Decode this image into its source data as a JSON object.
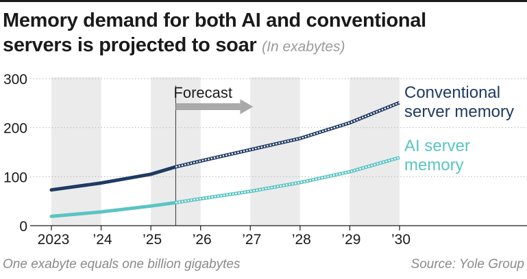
{
  "header": {
    "title_line1": "Memory demand for both AI and conventional",
    "title_line2": "servers is projected to soar",
    "unit": "(In exabytes)"
  },
  "footer": {
    "note": "One exabyte equals one billion gigabytes",
    "source": "Source: Yole Group"
  },
  "chart_data": {
    "type": "line",
    "title": "Memory demand for both AI and conventional servers is projected to soar",
    "ylabel": "",
    "xlabel": "",
    "ylim": [
      0,
      300
    ],
    "xlim": [
      2023,
      2031.5
    ],
    "y_ticks": [
      0,
      100,
      200,
      300
    ],
    "x_ticks": [
      {
        "value": 2023,
        "label": "2023"
      },
      {
        "value": 2024,
        "label": "’24"
      },
      {
        "value": 2025,
        "label": "’25"
      },
      {
        "value": 2026,
        "label": "’26"
      },
      {
        "value": 2027,
        "label": "’27"
      },
      {
        "value": 2028,
        "label": "’28"
      },
      {
        "value": 2029,
        "label": "’29"
      },
      {
        "value": 2030,
        "label": "’30"
      }
    ],
    "shaded_bands": [
      [
        2023,
        2024
      ],
      [
        2025,
        2026
      ],
      [
        2027,
        2028
      ],
      [
        2029,
        2030
      ]
    ],
    "forecast_start": 2025.5,
    "forecast_label": "Forecast",
    "grid": true,
    "series": [
      {
        "name": "Conventional server memory",
        "label_lines": [
          "Conventional",
          "server memory"
        ],
        "color": "#1f3a63",
        "x": [
          2023,
          2024,
          2025,
          2025.5,
          2026,
          2027,
          2028,
          2029,
          2030
        ],
        "y": [
          73,
          87,
          105,
          120,
          132,
          155,
          178,
          210,
          251
        ]
      },
      {
        "name": "AI server memory",
        "label_lines": [
          "AI server",
          "memory"
        ],
        "color": "#5ac4c4",
        "x": [
          2023,
          2024,
          2025,
          2025.5,
          2026,
          2027,
          2028,
          2029,
          2030
        ],
        "y": [
          19,
          28,
          40,
          47,
          55,
          70,
          88,
          110,
          139
        ]
      }
    ]
  },
  "colors": {
    "band": "#ebebeb",
    "axis": "#1a1a1a",
    "arrow": "#a9a9a9"
  }
}
